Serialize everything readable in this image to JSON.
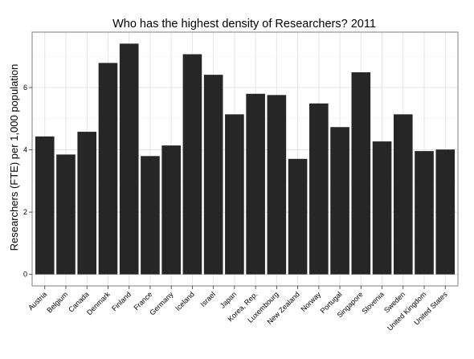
{
  "chart_data": {
    "type": "bar",
    "title": "Who has the highest density of Researchers?  2011",
    "xlabel": "",
    "ylabel": "Researchers (FTE) per 1,000 population",
    "categories": [
      "Austria",
      "Belgium",
      "Canada",
      "Denmark",
      "Finland",
      "France",
      "Germany",
      "Iceland",
      "Israel",
      "Japan",
      "Korea, Rep.",
      "Luxembourg",
      "New Zealand",
      "Norway",
      "Portugal",
      "Singapore",
      "Slovenia",
      "Sweden",
      "United Kingdom",
      "United States"
    ],
    "values": [
      4.43,
      3.85,
      4.58,
      6.79,
      7.41,
      3.8,
      4.14,
      7.07,
      6.41,
      5.14,
      5.8,
      5.76,
      3.71,
      5.49,
      4.73,
      6.49,
      4.27,
      5.14,
      3.96,
      4.01
    ],
    "yticks": [
      0,
      2,
      4,
      6
    ],
    "ylim": [
      -0.37,
      7.78
    ],
    "grid": true,
    "colors": {
      "bar": "#262626",
      "panel_border": "#7f7f7f",
      "grid_major": "#e5e5e5",
      "grid_minor": "#f2f2f2"
    }
  }
}
